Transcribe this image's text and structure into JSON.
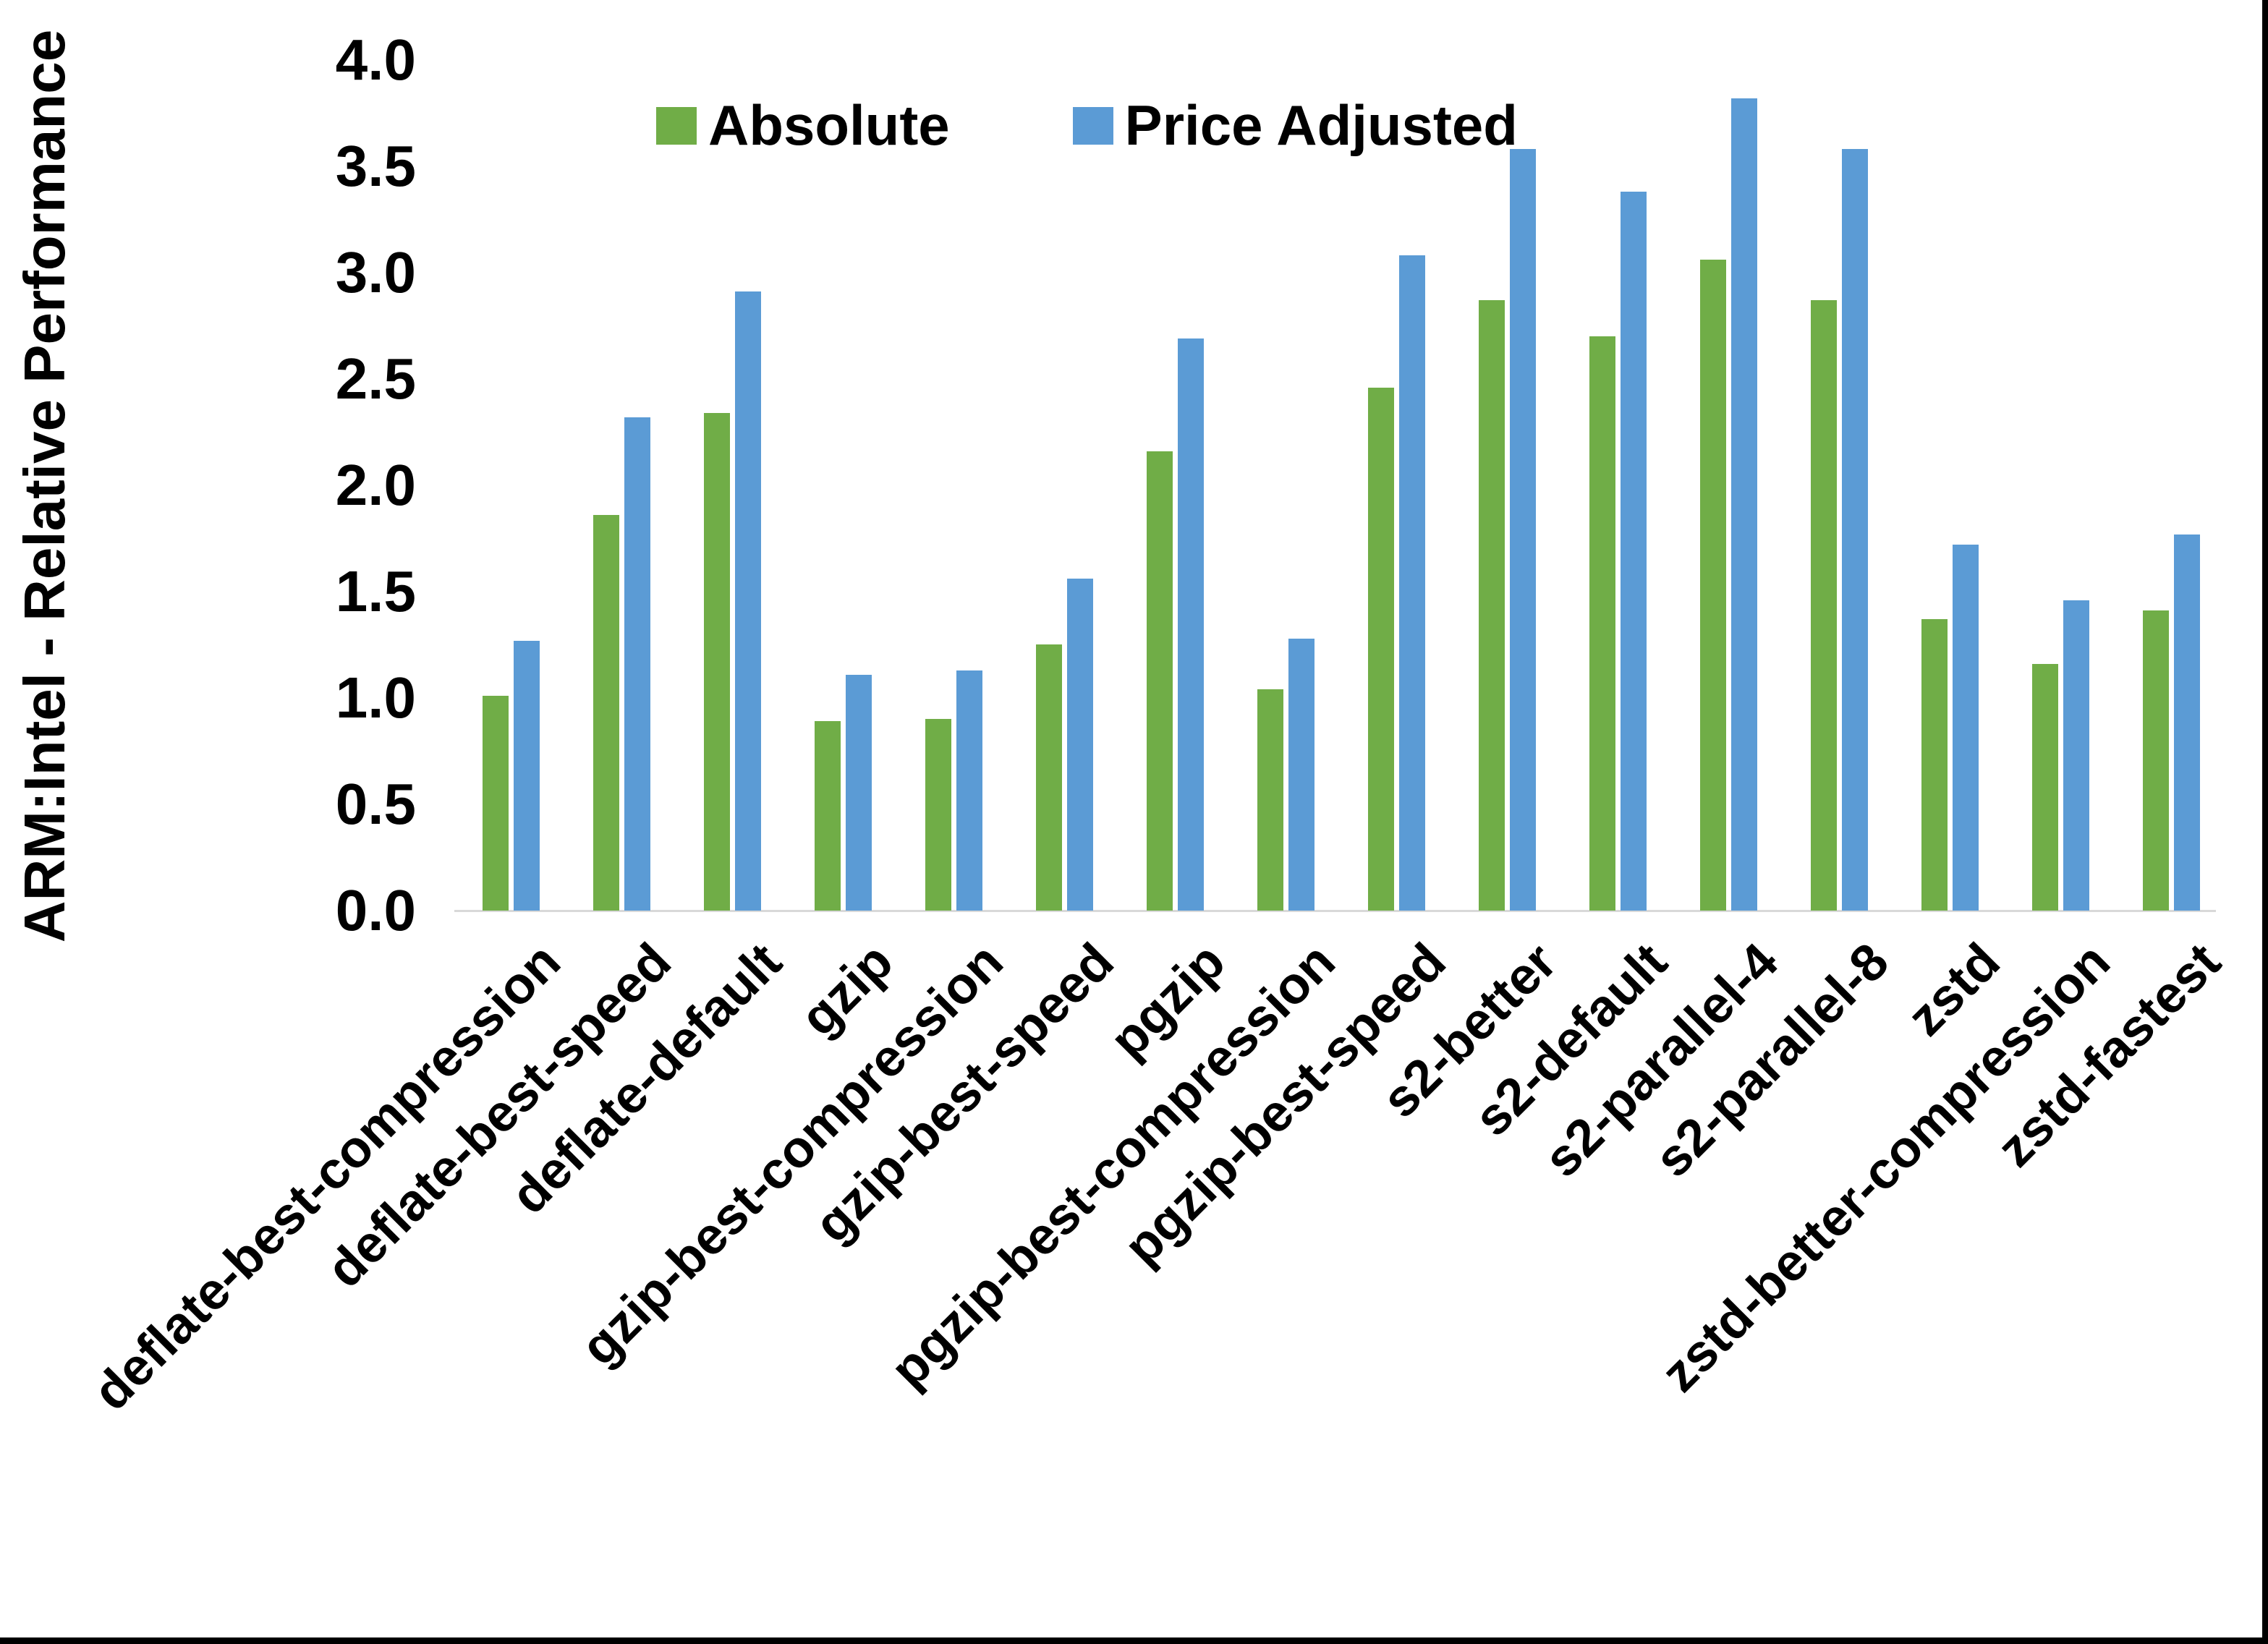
{
  "figure": {
    "background": "#ffffff",
    "edge_border_color": "#000000",
    "axis_line_color": "#d9d9d9",
    "text_color": "#000000"
  },
  "legend": {
    "items": [
      {
        "label": "Absolute",
        "color": "#70AD47"
      },
      {
        "label": "Price Adjusted",
        "color": "#5B9BD5"
      }
    ]
  },
  "y_axis": {
    "title": "ARM:Intel - Relative Performance",
    "tick_labels": [
      "0.0",
      "0.5",
      "1.0",
      "1.5",
      "2.0",
      "2.5",
      "3.0",
      "3.5",
      "4.0"
    ],
    "min": 0,
    "max": 4
  },
  "chart_data": {
    "type": "bar",
    "title": "",
    "xlabel": "",
    "ylabel": "ARM:Intel - Relative Performance",
    "ylim": [
      0,
      4
    ],
    "grid": false,
    "legend_position": "top-center-inside",
    "categories": [
      "deflate-best-compression",
      "deflate-best-speed",
      "deflate-default",
      "gzip",
      "gzip-best-compression",
      "gzip-best-speed",
      "pgzip",
      "pgzip-best-compression",
      "pgzip-best-speed",
      "s2-better",
      "s2-default",
      "s2-parallel-4",
      "s2-parallel-8",
      "zstd",
      "zstd-better-compression",
      "zstd-fastest"
    ],
    "series": [
      {
        "name": "Absolute",
        "color": "#70AD47",
        "values": [
          1.01,
          1.86,
          2.34,
          0.89,
          0.9,
          1.25,
          2.16,
          1.04,
          2.46,
          2.87,
          2.7,
          3.06,
          2.87,
          1.37,
          1.16,
          1.41
        ]
      },
      {
        "name": "Price Adjusted",
        "color": "#5B9BD5",
        "values": [
          1.27,
          2.32,
          2.91,
          1.11,
          1.13,
          1.56,
          2.69,
          1.28,
          3.08,
          3.58,
          3.38,
          3.82,
          3.58,
          1.72,
          1.46,
          1.77
        ]
      }
    ]
  }
}
